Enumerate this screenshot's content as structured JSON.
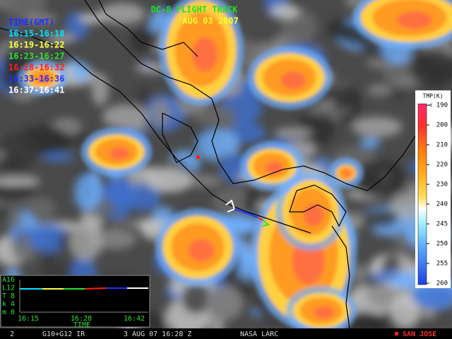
{
  "header": {
    "title": "DC-8 FLIGHT TRACK",
    "date": "AUG 03 2007"
  },
  "legend": {
    "title": "TIME(GMT)",
    "items": [
      {
        "label": "16:15-16:18",
        "color": "#00e5ff"
      },
      {
        "label": "16:19-16:22",
        "color": "#ffff40"
      },
      {
        "label": "16:23-16:27",
        "color": "#30e030"
      },
      {
        "label": "16:28-16:32",
        "color": "#ff2020"
      },
      {
        "label": "16:33-16:36",
        "color": "#2030ff"
      },
      {
        "label": "16:37-16:41",
        "color": "#ffffff"
      }
    ]
  },
  "colorbar": {
    "title": "TMP(K)",
    "labels": [
      "< 190",
      "200",
      "210",
      "220",
      "230",
      "240",
      "245",
      "250",
      "255",
      "260"
    ]
  },
  "inset": {
    "y_labels": [
      "A16",
      "L12",
      "T 8",
      "k 4",
      "m 0"
    ],
    "x_labels": [
      "16:15",
      "16:28",
      "16:42"
    ],
    "x_title": "TIME"
  },
  "footer": {
    "frame": "2",
    "sensor": "G10+G12 IR",
    "time": "3 AUG 07 16:28 Z",
    "source": "NASA LARC",
    "marker": "SAN JOSE"
  }
}
